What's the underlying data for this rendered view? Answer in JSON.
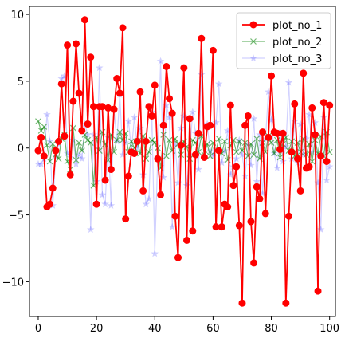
{
  "chart_data": {
    "type": "line",
    "xlim": [
      -3,
      102
    ],
    "ylim": [
      -12.6,
      10.6
    ],
    "x_ticks": [
      0,
      20,
      40,
      60,
      80,
      100
    ],
    "y_ticks": [
      -10,
      -5,
      0,
      5,
      10
    ],
    "legend_position": "top-right",
    "grid": false,
    "series": [
      {
        "name": "plot_no_1",
        "color": "#ff0000",
        "marker": "circle",
        "opacity": 1,
        "values": [
          -0.2,
          0.8,
          -0.6,
          -4.4,
          -4.2,
          -3.0,
          -0.2,
          0.5,
          4.8,
          0.9,
          7.7,
          -2.0,
          3.5,
          7.8,
          4.1,
          1.3,
          9.6,
          1.8,
          6.8,
          3.1,
          -4.2,
          3.1,
          3.1,
          -2.4,
          3.0,
          -1.6,
          2.9,
          5.2,
          4.1,
          9.0,
          -5.3,
          -2.1,
          -0.3,
          -0.4,
          0.5,
          4.2,
          -3.2,
          0.5,
          3.1,
          2.4,
          4.7,
          -0.8,
          -3.5,
          1.7,
          6.1,
          3.7,
          2.6,
          -5.1,
          -8.2,
          0.2,
          6.0,
          -6.9,
          2.2,
          -6.2,
          -0.5,
          1.1,
          8.2,
          -0.7,
          1.6,
          1.7,
          7.3,
          -5.9,
          -0.2,
          -5.9,
          -4.2,
          -4.4,
          3.2,
          -2.8,
          -1.4,
          -5.8,
          -11.6,
          1.7,
          2.4,
          -5.5,
          -8.6,
          -2.9,
          -3.8,
          1.2,
          -4.9,
          0.8,
          5.4,
          1.2,
          1.1,
          -0.1,
          1.1,
          -11.6,
          -5.1,
          -0.3,
          3.3,
          -0.8,
          -3.2,
          5.6,
          -1.5,
          -1.4,
          3.0,
          1.0,
          -10.7,
          -0.6,
          3.4,
          -1.0,
          3.2
        ]
      },
      {
        "name": "plot_no_2",
        "color": "#008000",
        "marker": "x",
        "opacity": 0.55,
        "values": [
          2.0,
          1.3,
          1.6,
          0.2,
          -1.0,
          0.3,
          -0.5,
          -0.8,
          0.7,
          1.0,
          -1.0,
          -1.6,
          1.5,
          -0.9,
          0.4,
          -0.2,
          1.0,
          0.6,
          0.4,
          -2.8,
          0.8,
          -0.2,
          1.2,
          0.3,
          -0.9,
          1.0,
          -0.3,
          0.6,
          1.2,
          0.6,
          1.1,
          -0.3,
          0.5,
          0.0,
          0.5,
          -0.4,
          0.9,
          -0.8,
          -0.3,
          0.6,
          0.4,
          0.0,
          -1.5,
          1.0,
          -0.6,
          0.6,
          -0.2,
          0.7,
          0.3,
          -0.5,
          0.5,
          0.1,
          -0.8,
          0.6,
          0.4,
          -0.3,
          0.9,
          -0.5,
          0.3,
          -0.6,
          0.4,
          -0.2,
          0.7,
          -0.4,
          0.5,
          -0.9,
          0.2,
          0.6,
          -0.3,
          0.5,
          -0.2,
          0.4,
          -0.6,
          0.3,
          -0.5,
          0.7,
          -0.8,
          0.4,
          -0.3,
          0.9,
          0.4,
          -0.4,
          0.6,
          -0.7,
          0.3,
          0.8,
          -0.2,
          0.5,
          -0.6,
          0.4,
          -0.3,
          0.7,
          -0.5,
          0.3,
          -1.0,
          0.6,
          -0.4,
          0.9,
          -0.6,
          1.2,
          -0.3
        ]
      },
      {
        "name": "plot_no_3",
        "color": "#0000ff",
        "marker": "star",
        "opacity": 0.18,
        "values": [
          -1.2,
          -1.2,
          -0.8,
          2.5,
          0.5,
          -4.3,
          -0.6,
          0.3,
          5.2,
          5.4,
          -0.4,
          -0.7,
          0.6,
          -1.2,
          -0.5,
          -0.8,
          1.8,
          1.0,
          -6.1,
          1.0,
          -2.5,
          6.0,
          -3.5,
          -4.2,
          0.8,
          -4.3,
          2.9,
          0.5,
          4.0,
          -0.5,
          0.4,
          2.0,
          -0.2,
          2.3,
          0.0,
          1.5,
          -2.0,
          -4.2,
          -3.8,
          2.7,
          -7.9,
          -0.7,
          6.5,
          -2.2,
          3.2,
          2.3,
          -5.9,
          0.3,
          -2.6,
          1.5,
          2.4,
          -2.8,
          -0.5,
          2.7,
          1.1,
          -1.6,
          5.5,
          -0.6,
          1.8,
          -0.2,
          -0.6,
          1.9,
          4.8,
          -1.1,
          -0.2,
          1.3,
          -2.0,
          -1.4,
          -0.8,
          0.6,
          -0.5,
          -2.1,
          0.3,
          -1.3,
          2.2,
          -2.5,
          1.0,
          -3.4,
          0.7,
          4.2,
          2.1,
          -0.4,
          -1.5,
          1.2,
          -1.0,
          0.1,
          4.9,
          -0.8,
          2.0,
          -1.1,
          1.8,
          -0.5,
          0.7,
          2.5,
          -0.3,
          1.9,
          -2.6,
          -6.1,
          2.3,
          -2.4,
          -1.4
        ]
      }
    ]
  }
}
